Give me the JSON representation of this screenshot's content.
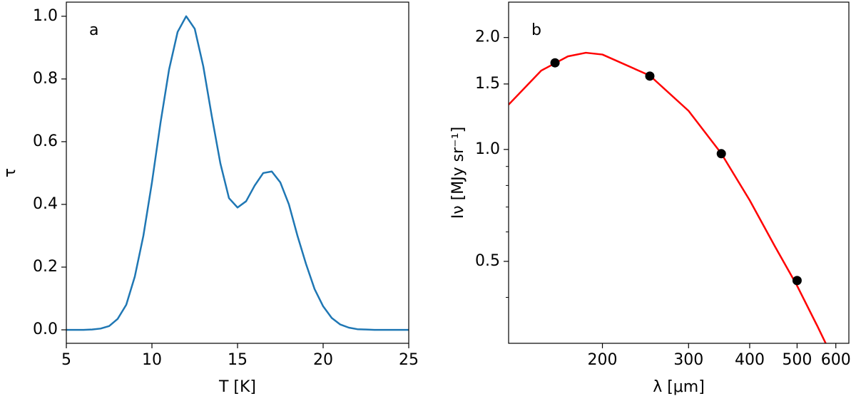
{
  "chart_data": [
    {
      "type": "line",
      "annotation": "a",
      "xlabel": "T [K]",
      "ylabel": "τ",
      "x": [
        5,
        5.5,
        6,
        6.5,
        7,
        7.5,
        8,
        8.5,
        9,
        9.5,
        10,
        10.5,
        11,
        11.5,
        12,
        12.5,
        13,
        13.5,
        14,
        14.5,
        15,
        15.5,
        16,
        16.5,
        17,
        17.5,
        18,
        18.5,
        19,
        19.5,
        20,
        20.5,
        21,
        21.5,
        22,
        22.5,
        23,
        23.5,
        24,
        24.5,
        25
      ],
      "series": [
        {
          "color": "#1f77b4",
          "values": [
            0,
            0,
            0,
            0.001,
            0.004,
            0.012,
            0.035,
            0.08,
            0.17,
            0.3,
            0.47,
            0.66,
            0.83,
            0.95,
            1.0,
            0.96,
            0.84,
            0.68,
            0.53,
            0.42,
            0.39,
            0.41,
            0.46,
            0.5,
            0.505,
            0.47,
            0.4,
            0.3,
            0.21,
            0.13,
            0.075,
            0.038,
            0.017,
            0.007,
            0.002,
            0.001,
            0,
            0,
            0,
            0,
            0
          ]
        }
      ],
      "xlim": [
        5,
        25
      ],
      "xticks": [
        5,
        10,
        15,
        20,
        25
      ],
      "ylim": [
        -0.043,
        1.045
      ],
      "yticks": [
        {
          "value": 0,
          "label": "0.0"
        },
        0.2,
        0.4,
        0.6,
        0.8,
        {
          "value": 1,
          "label": "1.0"
        }
      ]
    },
    {
      "type": "scatter",
      "annotation": "b",
      "xlabel": "λ [μm]",
      "ylabel": "Iν [MJy sr⁻¹]",
      "xscale": "log",
      "yscale": "log",
      "series": [
        {
          "type": "line",
          "color": "#ff0000",
          "x": [
            128.6,
            150,
            170,
            185,
            200,
            250,
            300,
            350,
            400,
            450,
            500,
            550,
            580
          ],
          "values": [
            1.32,
            1.63,
            1.78,
            1.82,
            1.8,
            1.58,
            1.27,
            0.975,
            0.73,
            0.55,
            0.43,
            0.335,
            0.29
          ]
        },
        {
          "type": "scatter",
          "color": "#000000",
          "x": [
            160,
            250,
            350,
            500
          ],
          "values": [
            1.71,
            1.575,
            0.974,
            0.444
          ]
        }
      ],
      "xlim": [
        128.6,
        638
      ],
      "xticks": [
        200,
        300,
        400,
        500,
        600
      ],
      "ylim": [
        0.301,
        2.49
      ],
      "yticks": [
        0.5,
        {
          "value": 1,
          "label": "1.0"
        },
        1.5,
        {
          "value": 2,
          "label": "2.0"
        }
      ],
      "yminor": [
        0.4,
        0.6,
        0.7,
        0.8,
        0.9
      ]
    }
  ]
}
